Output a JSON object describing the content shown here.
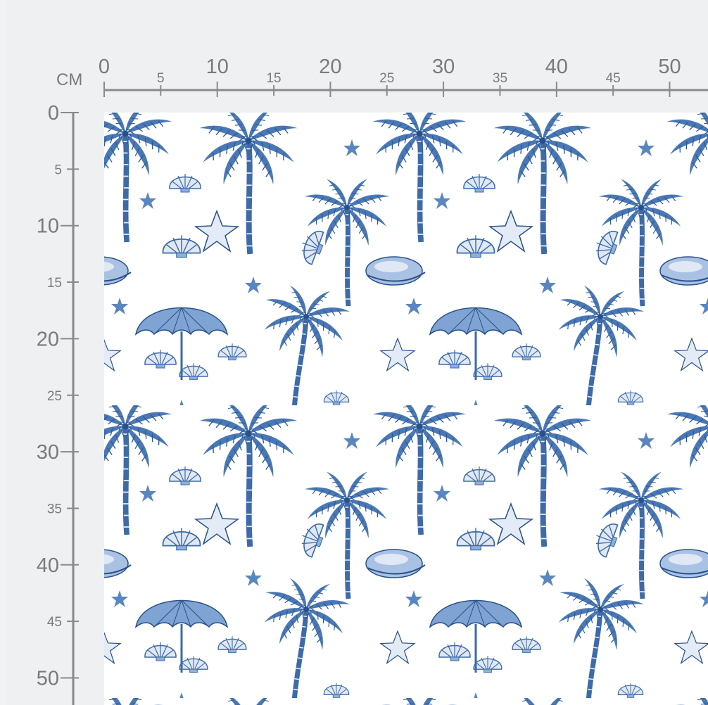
{
  "unit_label": "CM",
  "horizontal_ruler": {
    "major_labels": [
      "0",
      "10",
      "20",
      "30",
      "40",
      "50"
    ],
    "minor_labels": [
      "5",
      "15",
      "25",
      "35",
      "45"
    ]
  },
  "vertical_ruler": {
    "major_labels": [
      "0",
      "10",
      "20",
      "30",
      "40",
      "50"
    ],
    "minor_labels": [
      "5",
      "15",
      "25",
      "35",
      "45"
    ]
  },
  "fabric": {
    "motifs": [
      "palm-tree",
      "seashell",
      "starfish",
      "beach-umbrella",
      "cowrie-shell"
    ],
    "colors": {
      "background": "#ffffff",
      "ink": "#3d6aa8",
      "ink_dark": "#28508a",
      "ink_light": "#8fb0d8"
    }
  },
  "colors": {
    "ruler": "#8a8a8a",
    "page": "#eef0f2"
  }
}
